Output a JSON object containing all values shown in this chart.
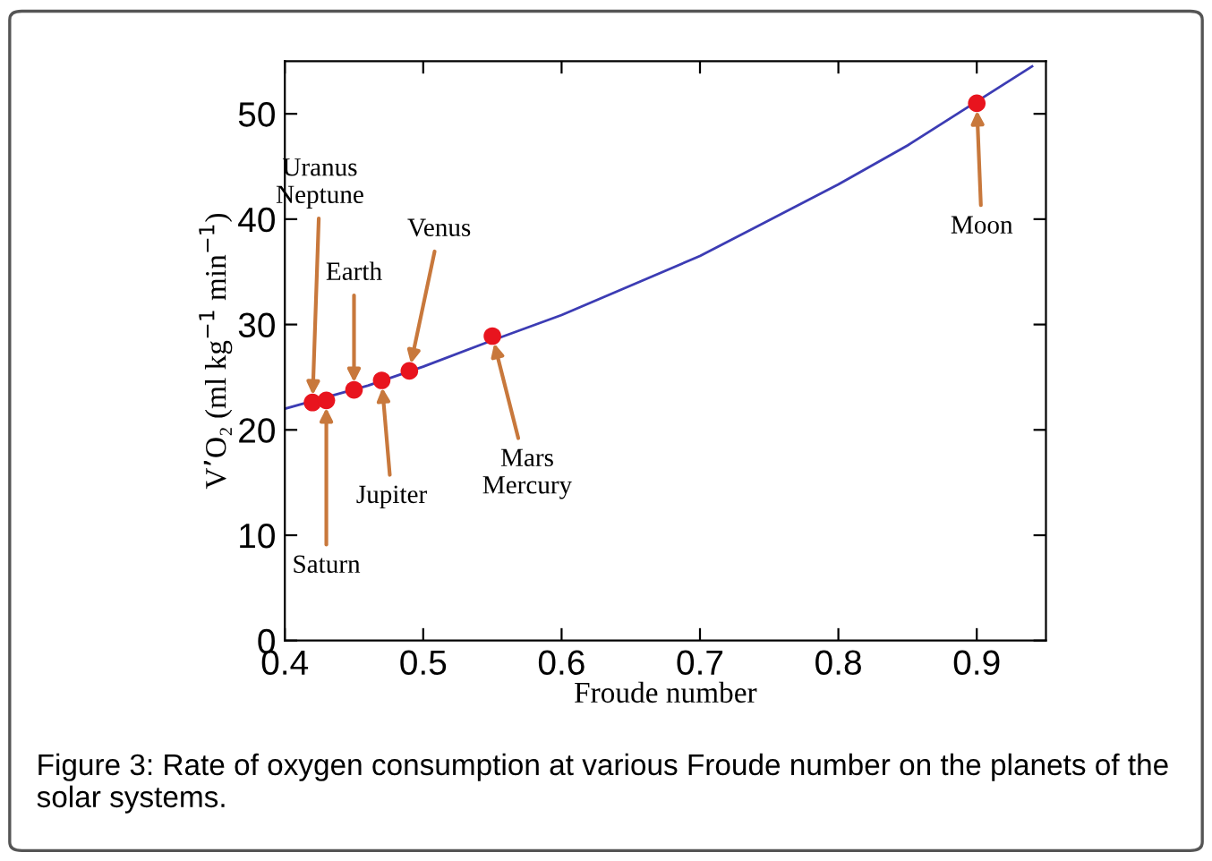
{
  "chart_data": {
    "type": "line",
    "xlabel": "Froude number",
    "ylabel": "V’O₂ (ml kg$^{−1}$ min$^{−1}$)",
    "xlim": [
      0.4,
      0.95
    ],
    "ylim": [
      0,
      55
    ],
    "xticks": [
      0.4,
      0.5,
      0.6,
      0.7,
      0.8,
      0.9
    ],
    "yticks": [
      0,
      10,
      20,
      30,
      40,
      50
    ],
    "grid": false,
    "series": [
      {
        "color": "#3c3cb4",
        "x": [
          0.4,
          0.46,
          0.5,
          0.55,
          0.6,
          0.7,
          0.8,
          0.85,
          0.94
        ],
        "values": [
          22.0,
          24.2,
          26.0,
          28.5,
          30.9,
          36.5,
          43.3,
          47.0,
          54.5
        ]
      },
      {
        "type": "scatter",
        "marker": "circle",
        "color": "#e8141e",
        "x": [
          0.42,
          0.43,
          0.45,
          0.47,
          0.49,
          0.55,
          0.9
        ],
        "values": [
          22.6,
          22.8,
          23.8,
          24.7,
          25.6,
          28.9,
          51.0
        ]
      }
    ],
    "annotations": [
      {
        "text": "Uranus\nNeptune",
        "x": 0.42,
        "y": 22.6
      },
      {
        "text": "Saturn",
        "x": 0.43,
        "y": 22.8
      },
      {
        "text": "Earth",
        "x": 0.45,
        "y": 23.8
      },
      {
        "text": "Jupiter",
        "x": 0.47,
        "y": 24.7
      },
      {
        "text": "Venus",
        "x": 0.49,
        "y": 25.6
      },
      {
        "text": "Mars\nMercury",
        "x": 0.55,
        "y": 28.9
      },
      {
        "text": "Moon",
        "x": 0.9,
        "y": 51.0
      },
      "Figure 3: Rate of oxygen consumption at various Froude number on the planets of the solar systems."
    ]
  }
}
